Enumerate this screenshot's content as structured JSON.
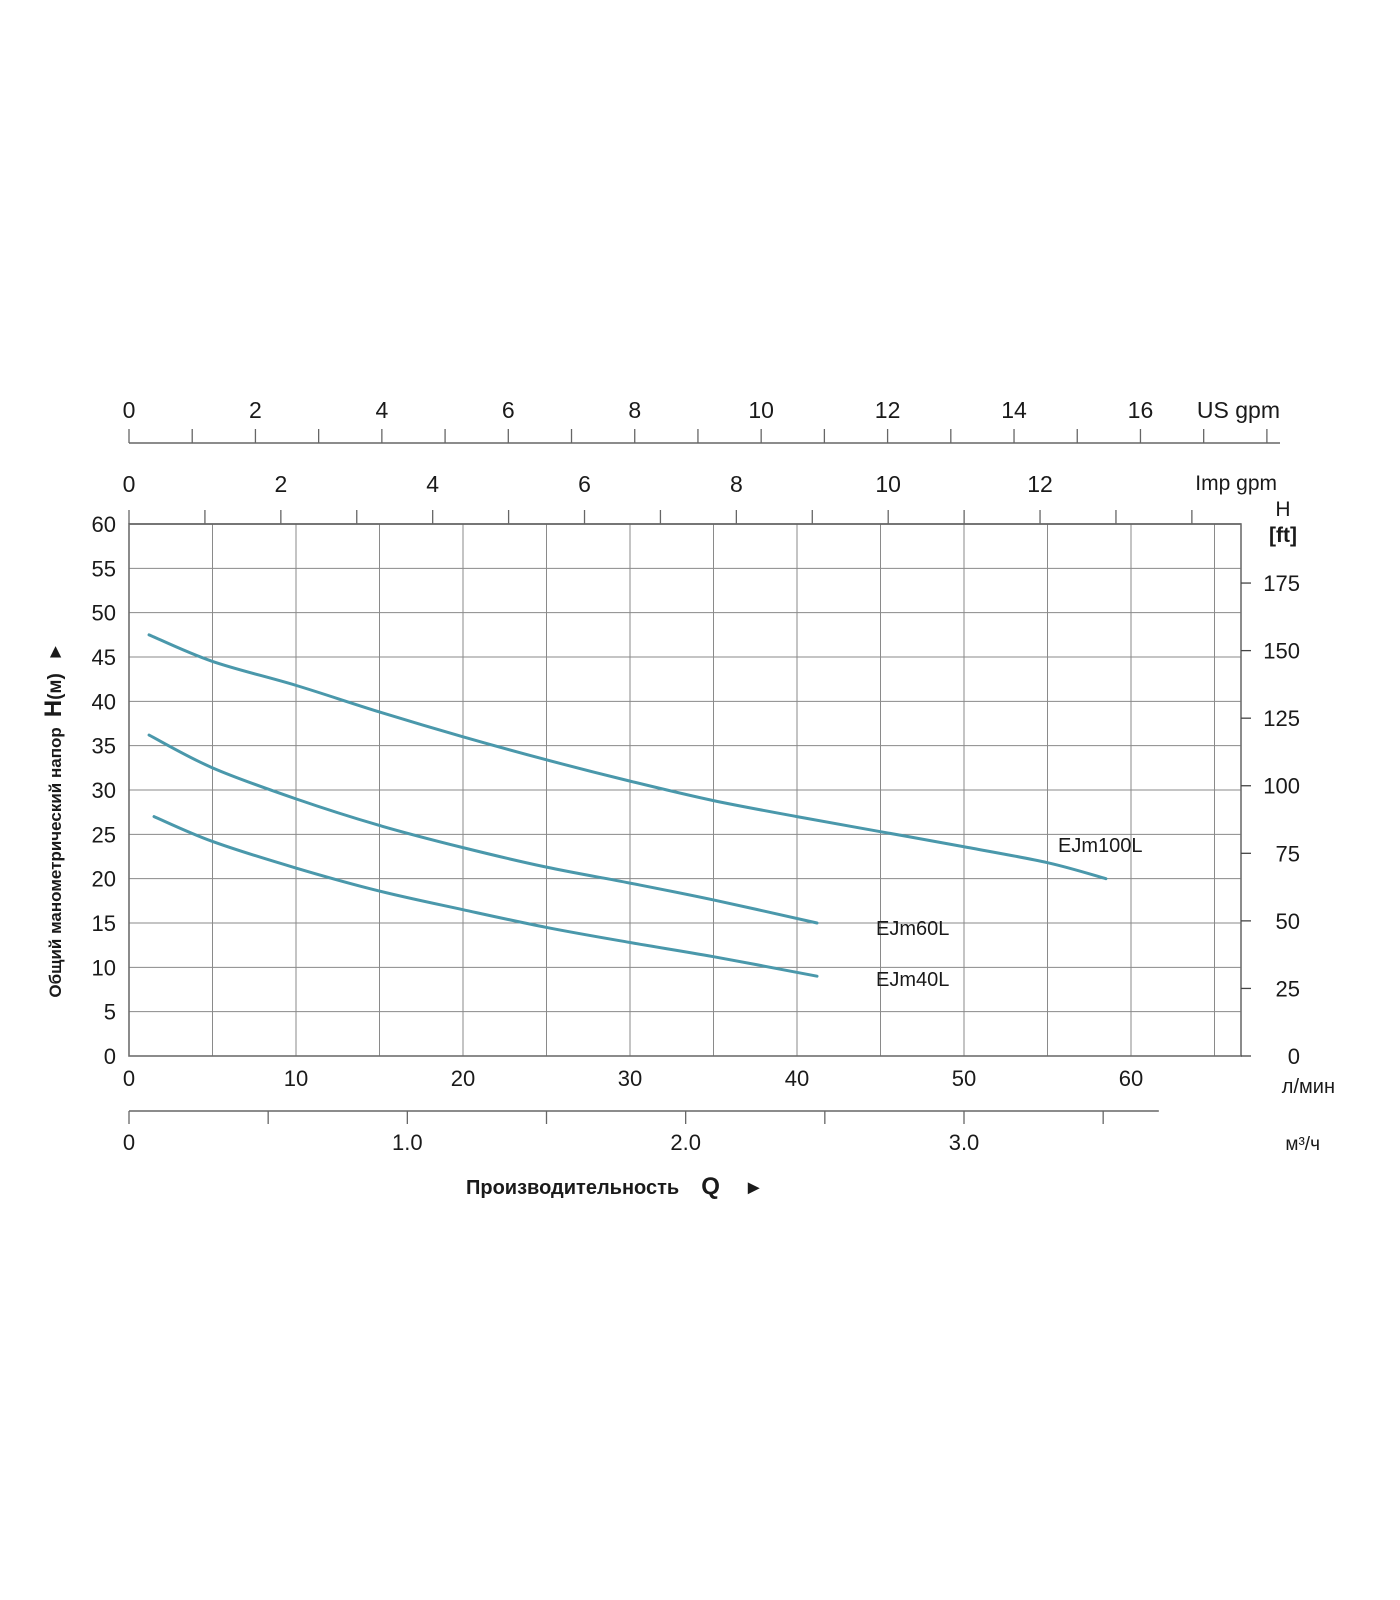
{
  "chart_data": {
    "type": "line",
    "xlabel": "Производительность",
    "xlabel_symbol": "Q",
    "xlabel_arrow": "►",
    "ylabel": "Общий манометрический напор",
    "ylabel_symbol": "H",
    "ylabel_unit": "(м)",
    "ylabel_arrow": "►",
    "grid": true,
    "x_axis": {
      "unit": "л/мин",
      "range": [
        0,
        66.5
      ],
      "ticks": [
        "0",
        "10",
        "20",
        "30",
        "40",
        "50",
        "60"
      ],
      "tick_values": [
        0,
        10,
        20,
        30,
        40,
        50,
        60
      ]
    },
    "y_axis": {
      "unit": "",
      "range": [
        0,
        60
      ],
      "ticks": [
        "0",
        "5",
        "10",
        "15",
        "20",
        "25",
        "30",
        "35",
        "40",
        "45",
        "50",
        "55",
        "60"
      ],
      "tick_values": [
        0,
        5,
        10,
        15,
        20,
        25,
        30,
        35,
        40,
        45,
        50,
        55,
        60
      ]
    },
    "y2_axis": {
      "title": "H",
      "unit": "[ft]",
      "ticks": [
        "0",
        "25",
        "50",
        "75",
        "100",
        "125",
        "150",
        "175"
      ],
      "tick_values": [
        0,
        25,
        50,
        75,
        100,
        125,
        150,
        175
      ]
    },
    "top_axis_us_gpm": {
      "unit": "US gpm",
      "ticks": [
        "0",
        "2",
        "4",
        "6",
        "8",
        "10",
        "12",
        "14",
        "16"
      ],
      "tick_values": [
        0,
        2,
        4,
        6,
        8,
        10,
        12,
        14,
        16
      ]
    },
    "top_axis_imp_gpm": {
      "unit": "Imp gpm",
      "ticks": [
        "0",
        "2",
        "4",
        "6",
        "8",
        "10",
        "12"
      ],
      "tick_values": [
        0,
        2,
        4,
        6,
        8,
        10,
        12
      ]
    },
    "bottom_axis_m3h": {
      "unit": "м³/ч",
      "ticks": [
        "0",
        "1.0",
        "2.0",
        "3.0"
      ],
      "tick_values": [
        0,
        1,
        2,
        3
      ]
    },
    "series_color": "#4a98ab",
    "series": [
      {
        "name": "EJm100L",
        "x": [
          1.2,
          5,
          10,
          15,
          20,
          25,
          30,
          35,
          40,
          45,
          50,
          55,
          58.5
        ],
        "y": [
          47.5,
          44.5,
          41.8,
          38.8,
          36.0,
          33.4,
          31.0,
          28.8,
          27.0,
          25.3,
          23.6,
          21.8,
          20.0
        ]
      },
      {
        "name": "EJm60L",
        "x": [
          1.2,
          5,
          10,
          15,
          20,
          25,
          30,
          35,
          41.2
        ],
        "y": [
          36.2,
          32.5,
          29.0,
          26.0,
          23.5,
          21.3,
          19.5,
          17.6,
          15.0
        ]
      },
      {
        "name": "EJm40L",
        "x": [
          1.5,
          5,
          10,
          15,
          20,
          25,
          30,
          35,
          41.2
        ],
        "y": [
          27.0,
          24.2,
          21.2,
          18.6,
          16.5,
          14.5,
          12.8,
          11.2,
          9.0
        ]
      }
    ]
  }
}
